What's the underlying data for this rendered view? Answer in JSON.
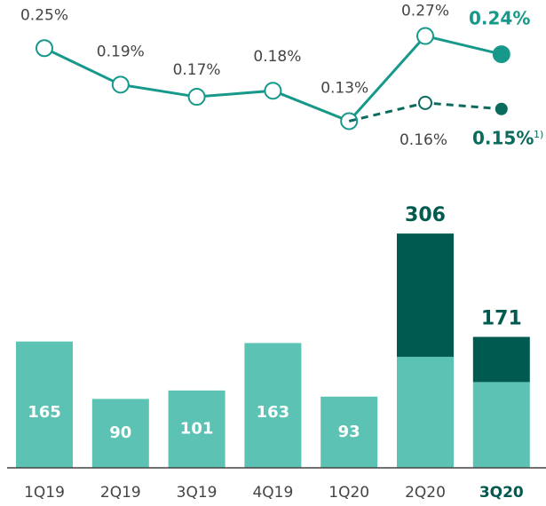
{
  "chart_data": [
    {
      "type": "line",
      "categories": [
        "1Q19",
        "2Q19",
        "3Q19",
        "4Q19",
        "1Q20",
        "2Q20",
        "3Q20"
      ],
      "ylim": [
        0.1,
        0.3
      ],
      "series": [
        {
          "color": "#16998a",
          "values": [
            0.25,
            0.19,
            0.17,
            0.18,
            0.13,
            0.27,
            0.24
          ],
          "value_labels": [
            "0.25%",
            "0.19%",
            "0.17%",
            "0.18%",
            "0.13%",
            "0.27%",
            "0.24%"
          ]
        },
        {
          "color": "#0a6b5e",
          "dashed": true,
          "values": [
            null,
            null,
            null,
            null,
            0.13,
            0.16,
            0.15
          ],
          "value_labels": [
            null,
            null,
            null,
            null,
            null,
            "0.16%",
            "0.15%"
          ]
        }
      ],
      "footnote": "1)"
    },
    {
      "type": "bar",
      "categories": [
        "1Q19",
        "2Q19",
        "3Q19",
        "4Q19",
        "1Q20",
        "2Q20",
        "3Q20"
      ],
      "ylim": [
        0,
        320
      ],
      "series": [
        {
          "color": "#5cc2b3",
          "values": [
            165,
            90,
            101,
            163,
            93,
            145,
            112
          ],
          "value_labels": [
            "165",
            "90",
            "101",
            "163",
            "93",
            null,
            null
          ]
        },
        {
          "color": "#005a50",
          "values": [
            null,
            null,
            null,
            null,
            null,
            161,
            59
          ]
        }
      ],
      "totals": [
        null,
        null,
        null,
        null,
        null,
        306,
        171
      ]
    }
  ]
}
